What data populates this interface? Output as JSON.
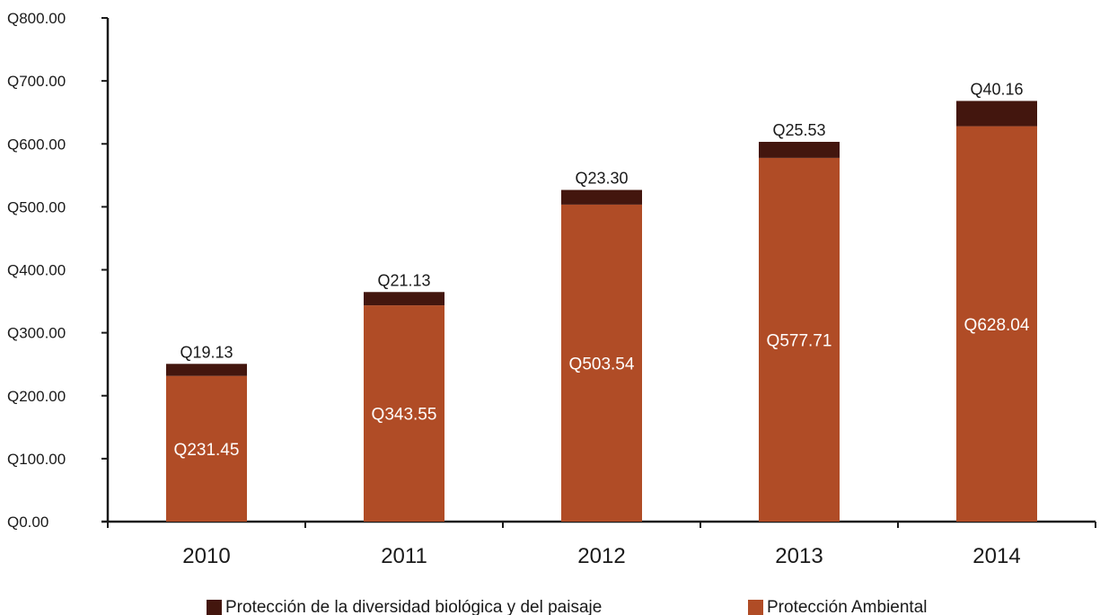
{
  "chart_data": {
    "type": "bar",
    "stacked": true,
    "categories": [
      "2010",
      "2011",
      "2012",
      "2013",
      "2014"
    ],
    "series": [
      {
        "name": "Protección Ambiental",
        "values": [
          231.45,
          343.55,
          503.54,
          577.71,
          628.04
        ],
        "labels": [
          "Q231.45",
          "Q343.55",
          "Q503.54",
          "Q577.71",
          "Q628.04"
        ],
        "color": "#b04c26"
      },
      {
        "name": "Protección de la diversidad biológica y del paisaje",
        "values": [
          19.13,
          21.13,
          23.3,
          25.53,
          40.16
        ],
        "labels": [
          "Q19.13",
          "Q21.13",
          "Q23.30",
          "Q25.53",
          "Q40.16"
        ],
        "color": "#43160e"
      }
    ],
    "yticks": [
      "Q0.00",
      "Q100.00",
      "Q200.00",
      "Q300.00",
      "Q400.00",
      "Q500.00",
      "Q600.00",
      "Q700.00",
      "Q800.00"
    ],
    "ylim": [
      0,
      800
    ],
    "grid": false,
    "legend_position": "bottom",
    "legend_order": [
      1,
      0
    ]
  }
}
